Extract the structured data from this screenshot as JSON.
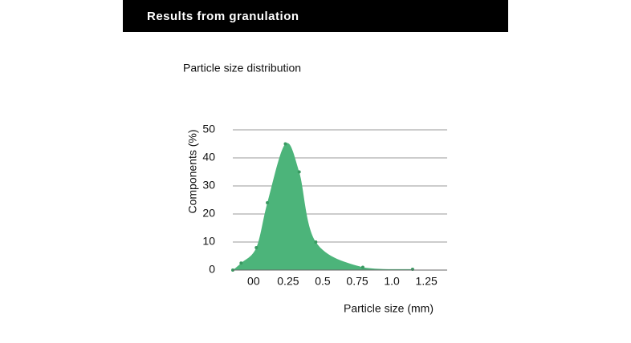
{
  "header": {
    "title": "Results from granulation"
  },
  "chart_data": {
    "type": "area",
    "title": "Particle size distribution",
    "x_label": "Particle size (mm)",
    "y_label": "Components (%)",
    "x": [
      -0.15,
      -0.09,
      0.02,
      0.1,
      0.23,
      0.33,
      0.45,
      0.79,
      1.15
    ],
    "series": [
      {
        "color": "#4cb47a",
        "values": [
          0,
          2.5,
          8,
          24,
          45,
          35,
          10,
          1,
          0.3
        ]
      }
    ],
    "xlim": [
      -0.15,
      1.4
    ],
    "xticks": [
      {
        "value": 0,
        "label": "00"
      },
      0.25,
      0.5,
      0.75,
      {
        "value": 1.0,
        "label": "1.0"
      },
      1.25
    ],
    "ylim": [
      0,
      50
    ],
    "yticks": [
      0,
      10,
      20,
      30,
      40,
      50
    ],
    "grid": true
  }
}
